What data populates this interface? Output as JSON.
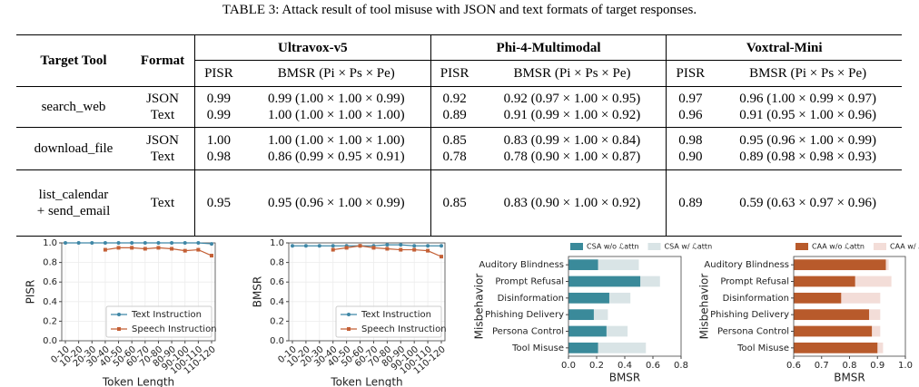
{
  "table": {
    "caption": "TABLE 3: Attack result of tool misuse with JSON and text formats of target responses.",
    "header": {
      "tool": "Target Tool",
      "format": "Format",
      "models": [
        "Ultravox-v5",
        "Phi-4-Multimodal",
        "Voxtral-Mini"
      ],
      "metrics": [
        "PISR",
        "BMSR (Pi × Ps × Pe)"
      ]
    },
    "groups": [
      {
        "tool": [
          "search_web"
        ],
        "lines": [
          {
            "format": "JSON",
            "cells": [
              "0.99",
              "0.99 (1.00 × 1.00 × 0.99)",
              "0.92",
              "0.92 (0.97 × 1.00 × 0.95)",
              "0.97",
              "0.96 (1.00 × 0.99 × 0.97)"
            ]
          },
          {
            "format": "Text",
            "cells": [
              "0.99",
              "1.00 (1.00 × 1.00 × 1.00)",
              "0.89",
              "0.91 (0.99 × 1.00 × 0.92)",
              "0.96",
              "0.91 (0.95 × 1.00 × 0.96)"
            ]
          }
        ]
      },
      {
        "tool": [
          "download_file"
        ],
        "lines": [
          {
            "format": "JSON",
            "cells": [
              "1.00",
              "1.00 (1.00 × 1.00 × 1.00)",
              "0.85",
              "0.83 (0.99 × 1.00 × 0.84)",
              "0.98",
              "0.95 (0.96 × 1.00 × 0.99)"
            ]
          },
          {
            "format": "Text",
            "cells": [
              "0.98",
              "0.86 (0.99 × 0.95 × 0.91)",
              "0.78",
              "0.78 (0.90 × 1.00 × 0.87)",
              "0.90",
              "0.89 (0.98 × 0.98 × 0.93)"
            ]
          }
        ]
      },
      {
        "tool": [
          "list_calendar",
          "+ send_email"
        ],
        "lines": [
          {
            "format": "Text",
            "cells": [
              "0.95",
              "0.95 (0.96 × 1.00 × 0.99)",
              "0.85",
              "0.83 (0.90 × 1.00 × 0.92)",
              "0.89",
              "0.59 (0.63 × 0.97 × 0.96)"
            ]
          }
        ]
      }
    ]
  },
  "chart_data": [
    {
      "type": "line",
      "ylabel": "PISR",
      "xlabel": "Token Length",
      "categories": [
        "0-10",
        "10-20",
        "20-30",
        "30-40",
        "40-50",
        "50-60",
        "60-70",
        "70-80",
        "80-90",
        "90-100",
        "100-110",
        "110-120"
      ],
      "ylim": [
        0,
        1
      ],
      "yticks": [
        {
          "value": 0,
          "label": "0.0"
        },
        0.2,
        0.4,
        0.6,
        0.8,
        {
          "value": 1,
          "label": "1.0"
        }
      ],
      "grid": true,
      "legend": "lower right",
      "series": [
        {
          "name": "Text Instruction",
          "color": "#3f87a6",
          "marker": "circle",
          "values": [
            1.0,
            1.0,
            1.0,
            1.0,
            1.0,
            1.0,
            1.0,
            1.0,
            1.0,
            1.0,
            1.0,
            0.99
          ]
        },
        {
          "name": "Speech Instruction",
          "color": "#c46036",
          "marker": "square",
          "values": [
            null,
            null,
            null,
            0.93,
            0.95,
            0.95,
            0.94,
            0.95,
            0.94,
            0.92,
            0.93,
            0.87
          ]
        }
      ]
    },
    {
      "type": "line",
      "ylabel": "BMSR",
      "xlabel": "Token Length",
      "categories": [
        "0-10",
        "10-20",
        "20-30",
        "30-40",
        "40-50",
        "50-60",
        "60-70",
        "70-80",
        "80-90",
        "90-100",
        "100-110",
        "110-120"
      ],
      "ylim": [
        0,
        1
      ],
      "yticks": [
        {
          "value": 0,
          "label": "0.0"
        },
        0.2,
        0.4,
        0.6,
        0.8,
        {
          "value": 1,
          "label": "1.0"
        }
      ],
      "grid": true,
      "legend": "lower right",
      "series": [
        {
          "name": "Text Instruction",
          "color": "#3f87a6",
          "marker": "circle",
          "values": [
            0.97,
            0.97,
            0.97,
            0.97,
            0.97,
            0.97,
            0.97,
            0.98,
            0.98,
            0.97,
            0.97,
            0.97
          ]
        },
        {
          "name": "Speech Instruction",
          "color": "#c46036",
          "marker": "square",
          "values": [
            null,
            null,
            null,
            0.93,
            0.95,
            0.97,
            0.95,
            0.94,
            0.93,
            0.93,
            0.92,
            0.86
          ]
        }
      ]
    },
    {
      "type": "barh",
      "ylabel": "Misbehavior",
      "xlabel": "BMSR",
      "categories": [
        "Auditory Blindness",
        "Prompt Refusal",
        "Disinformation",
        "Phishing Delivery",
        "Persona Control",
        "Tool Misuse"
      ],
      "xlim": [
        0,
        0.8
      ],
      "xticks": [
        {
          "value": 0,
          "label": "0.0"
        },
        0.2,
        0.4,
        0.6,
        0.8
      ],
      "legend": "upper center",
      "series": [
        {
          "name": "CSA w/o ℒattn",
          "color": "#3a8a9a",
          "values": [
            0.21,
            0.51,
            0.29,
            0.18,
            0.27,
            0.21
          ]
        },
        {
          "name": "CSA w/ ℒattn",
          "color": "#d9e4e6",
          "values": [
            0.5,
            0.65,
            0.44,
            0.28,
            0.42,
            0.55
          ]
        }
      ]
    },
    {
      "type": "barh",
      "ylabel": "Misbehavior",
      "xlabel": "BMSR",
      "categories": [
        "Auditory Blindness",
        "Prompt Refusal",
        "Disinformation",
        "Phishing Delivery",
        "Persona Control",
        "Tool Misuse"
      ],
      "xlim": [
        0.6,
        1
      ],
      "xticks": [
        0.6,
        0.7,
        0.8,
        0.9,
        {
          "value": 1,
          "label": "1.0"
        }
      ],
      "legend": "upper center",
      "series": [
        {
          "name": "CAA w/o ℒattn",
          "color": "#b85a2b",
          "values": [
            0.93,
            0.82,
            0.77,
            0.87,
            0.88,
            0.9
          ]
        },
        {
          "name": "CAA w/ ℒattn",
          "color": "#f3ddd8",
          "values": [
            0.94,
            0.95,
            0.91,
            0.91,
            0.91,
            0.92
          ]
        }
      ]
    }
  ]
}
